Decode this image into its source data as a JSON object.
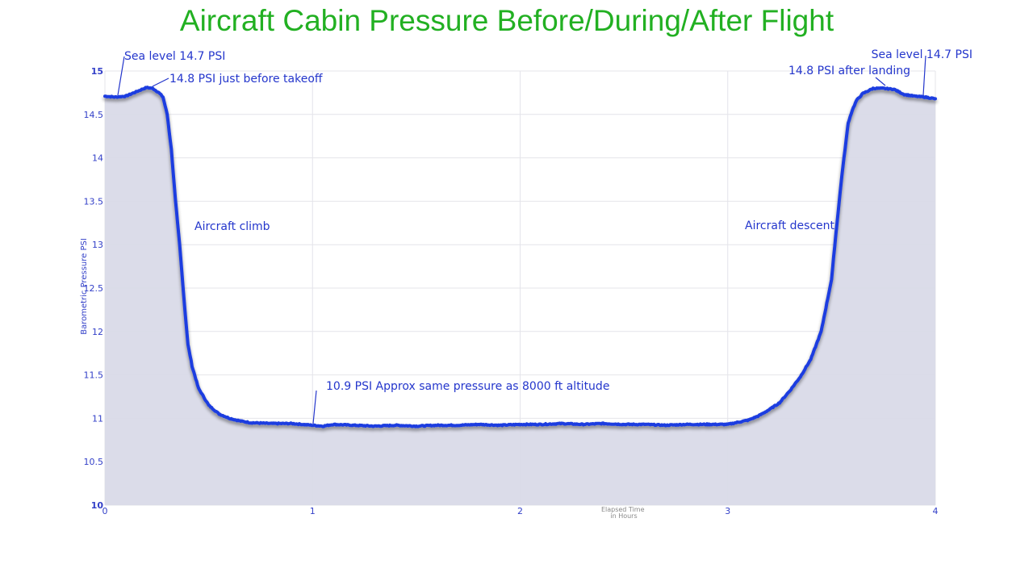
{
  "chart_data": {
    "type": "area",
    "title": "Aircraft Cabin Pressure Before/During/After Flight",
    "xlabel_lines": [
      "Elapsed Time",
      "in Hours"
    ],
    "ylabel": "Barometric Pressure PSI",
    "xlim": [
      0,
      4
    ],
    "ylim": [
      10,
      15
    ],
    "x_ticks": [
      0,
      1,
      2,
      3,
      4
    ],
    "y_ticks": [
      10,
      10.5,
      11,
      11.5,
      12,
      12.5,
      13,
      13.5,
      14,
      14.5,
      15
    ],
    "grid": true,
    "legend": "none",
    "colors": {
      "line": "#1f3de0",
      "fill": "#d9dae8",
      "title": "#22b022",
      "text": "#2436cc"
    },
    "series": [
      {
        "x": [
          0,
          0.05,
          0.1,
          0.15,
          0.2,
          0.23,
          0.26,
          0.28,
          0.3,
          0.32,
          0.34,
          0.36,
          0.38,
          0.4,
          0.42,
          0.45,
          0.5,
          0.55,
          0.6,
          0.65,
          0.7,
          0.8,
          0.9,
          1.0,
          1.05,
          1.1,
          1.2,
          1.3,
          1.4,
          1.5,
          1.6,
          1.7,
          1.8,
          1.9,
          2.0,
          2.1,
          2.2,
          2.3,
          2.4,
          2.5,
          2.6,
          2.7,
          2.8,
          2.9,
          3.0,
          3.1,
          3.15,
          3.2,
          3.25,
          3.3,
          3.35,
          3.4,
          3.45,
          3.5,
          3.52,
          3.55,
          3.57,
          3.58,
          3.6,
          3.62,
          3.65,
          3.7,
          3.75,
          3.8,
          3.85,
          3.9,
          3.95,
          4.0
        ],
        "y": [
          14.71,
          14.7,
          14.71,
          14.76,
          14.81,
          14.8,
          14.75,
          14.7,
          14.5,
          14.1,
          13.5,
          13.0,
          12.4,
          11.85,
          11.6,
          11.35,
          11.15,
          11.05,
          11.0,
          10.97,
          10.95,
          10.94,
          10.94,
          10.92,
          10.91,
          10.93,
          10.92,
          10.91,
          10.92,
          10.91,
          10.92,
          10.92,
          10.93,
          10.92,
          10.93,
          10.93,
          10.94,
          10.93,
          10.94,
          10.93,
          10.93,
          10.92,
          10.93,
          10.93,
          10.93,
          10.98,
          11.03,
          11.1,
          11.18,
          11.32,
          11.48,
          11.68,
          12.0,
          12.6,
          13.1,
          13.8,
          14.2,
          14.4,
          14.55,
          14.66,
          14.74,
          14.8,
          14.8,
          14.79,
          14.73,
          14.71,
          14.7,
          14.68
        ]
      }
    ],
    "annotations": [
      {
        "text": "Sea level  14.7 PSI",
        "x": 0.06,
        "y": 14.71
      },
      {
        "text": "14.8 PSI just before takeoff",
        "x": 0.24,
        "y": 14.8
      },
      {
        "text": "Aircraft climb",
        "x": 0.42,
        "y": 13.2
      },
      {
        "text": "10.9 PSI  Approx same pressure as 8000 ft altitude",
        "x": 1.01,
        "y": 10.93
      },
      {
        "text": "Aircraft descent",
        "x": 3.48,
        "y": 13.2
      },
      {
        "text": "14.8 PSI after landing",
        "x": 3.72,
        "y": 14.8
      },
      {
        "text": "Sea level  14.7 PSI",
        "x": 3.96,
        "y": 14.7
      }
    ]
  }
}
